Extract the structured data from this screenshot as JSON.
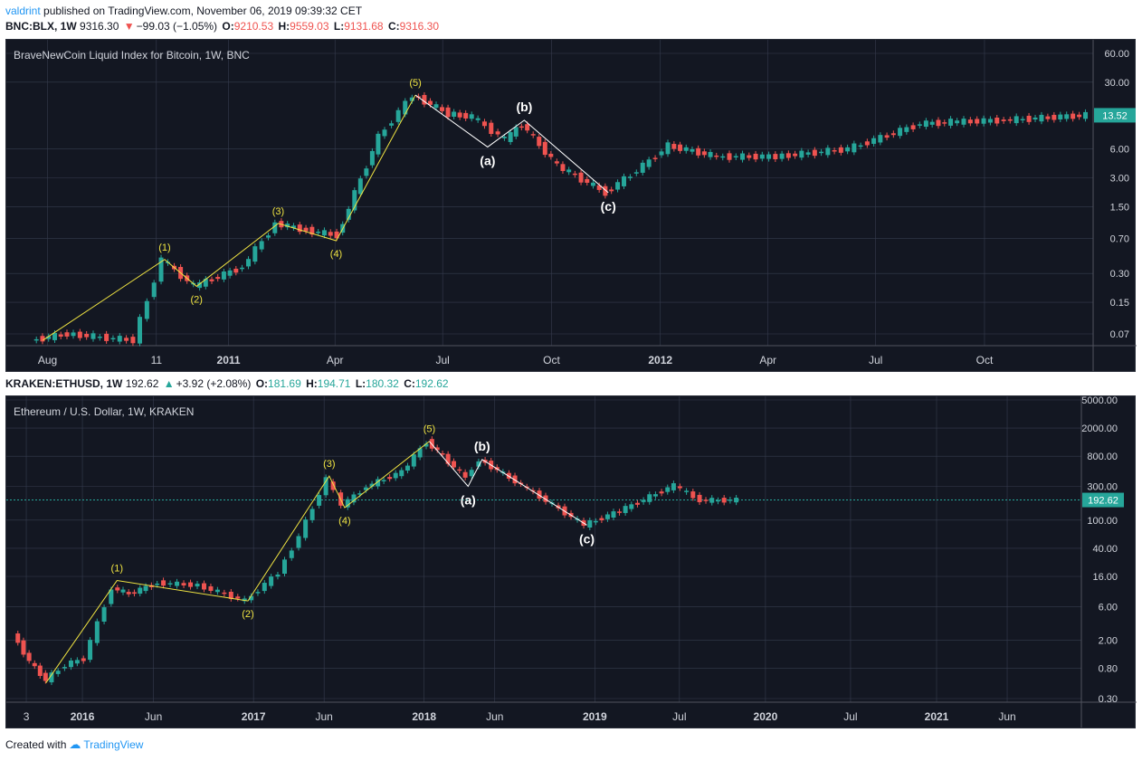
{
  "header": {
    "author": "valdrint",
    "published_text": "published on TradingView.com, November 06, 2019 09:39:32 CET"
  },
  "chart1_header": {
    "symbol": "BNC:BLX, 1W",
    "price": "9316.30",
    "change": "−99.03 (−1.05%)",
    "o_label": "O:",
    "o": "9210.53",
    "h_label": "H:",
    "h": "9559.03",
    "l_label": "L:",
    "l": "9131.68",
    "c_label": "C:",
    "c": "9316.30",
    "change_color": "#ef5350"
  },
  "chart2_header": {
    "symbol": "KRAKEN:ETHUSD, 1W",
    "price": "192.62",
    "change": "+3.92 (+2.08%)",
    "o_label": "O:",
    "o": "181.69",
    "h_label": "H:",
    "h": "194.71",
    "l_label": "L:",
    "l": "180.32",
    "c_label": "C:",
    "c": "192.62",
    "change_color": "#26a69a"
  },
  "footer": {
    "created_with": "Created with",
    "brand": "TradingView"
  },
  "chart_data": [
    {
      "type": "line",
      "title": "BraveNewCoin Liquid Index for Bitcoin, 1W, BNC",
      "y_scale": "log",
      "y_ticks": [
        "60.00",
        "30.00",
        "13.52",
        "6.00",
        "3.00",
        "1.50",
        "0.70",
        "0.30",
        "0.15",
        "0.07"
      ],
      "y_tick_values": [
        60,
        30,
        13.52,
        6,
        3,
        1.5,
        0.7,
        0.3,
        0.15,
        0.07
      ],
      "last_price_label": "13.52",
      "x_ticks": [
        "Aug",
        "11",
        "2011",
        "Apr",
        "Jul",
        "Oct",
        "2012",
        "Apr",
        "Jul",
        "Oct"
      ],
      "bold_x_ticks": [
        "2011",
        "2012"
      ],
      "x_range": [
        "2010-07",
        "2012-12"
      ],
      "price_path": [
        {
          "x": "2010-07-20",
          "y": 0.06
        },
        {
          "x": "2010-08-20",
          "y": 0.07
        },
        {
          "x": "2010-10-15",
          "y": 0.06
        },
        {
          "x": "2010-11-08",
          "y": 0.42
        },
        {
          "x": "2010-12-05",
          "y": 0.22
        },
        {
          "x": "2011-01-15",
          "y": 0.35
        },
        {
          "x": "2011-02-12",
          "y": 1.0
        },
        {
          "x": "2011-03-10",
          "y": 0.85
        },
        {
          "x": "2011-04-05",
          "y": 0.75
        },
        {
          "x": "2011-05-10",
          "y": 8
        },
        {
          "x": "2011-06-08",
          "y": 22
        },
        {
          "x": "2011-07-08",
          "y": 14
        },
        {
          "x": "2011-07-28",
          "y": 13
        },
        {
          "x": "2011-08-25",
          "y": 7.5
        },
        {
          "x": "2011-09-08",
          "y": 11
        },
        {
          "x": "2011-10-08",
          "y": 4
        },
        {
          "x": "2011-11-18",
          "y": 2.1
        },
        {
          "x": "2011-12-25",
          "y": 4.5
        },
        {
          "x": "2012-01-10",
          "y": 6.5
        },
        {
          "x": "2012-02-20",
          "y": 5
        },
        {
          "x": "2012-04-10",
          "y": 5
        },
        {
          "x": "2012-06-10",
          "y": 6
        },
        {
          "x": "2012-08-10",
          "y": 11
        },
        {
          "x": "2012-09-05",
          "y": 11.5
        },
        {
          "x": "2012-10-20",
          "y": 12
        },
        {
          "x": "2012-12-28",
          "y": 13.52
        }
      ],
      "wave_lines": [
        {
          "color": "#f0e442",
          "points": [
            {
              "x": "2010-07-28",
              "y": 0.06
            },
            {
              "x": "2010-11-08",
              "y": 0.42
            },
            {
              "x": "2010-12-05",
              "y": 0.22
            },
            {
              "x": "2011-02-12",
              "y": 1.0
            },
            {
              "x": "2011-04-02",
              "y": 0.66
            },
            {
              "x": "2011-06-08",
              "y": 22
            }
          ]
        },
        {
          "color": "#ffffff",
          "points": [
            {
              "x": "2011-06-08",
              "y": 22
            },
            {
              "x": "2011-08-08",
              "y": 6.3
            },
            {
              "x": "2011-09-08",
              "y": 12
            },
            {
              "x": "2011-11-18",
              "y": 2.1
            }
          ]
        }
      ],
      "annotations": [
        {
          "text": "(1)",
          "x": "2010-11-08",
          "y": 0.42,
          "color": "#f0e442",
          "pos": "above"
        },
        {
          "text": "(2)",
          "x": "2010-12-05",
          "y": 0.22,
          "color": "#f0e442",
          "pos": "below"
        },
        {
          "text": "(3)",
          "x": "2011-02-12",
          "y": 1.0,
          "color": "#f0e442",
          "pos": "above"
        },
        {
          "text": "(4)",
          "x": "2011-04-02",
          "y": 0.66,
          "color": "#f0e442",
          "pos": "below"
        },
        {
          "text": "(5)",
          "x": "2011-06-08",
          "y": 22,
          "color": "#f0e442",
          "pos": "above"
        },
        {
          "text": "(a)",
          "x": "2011-08-08",
          "y": 6.3,
          "color": "#ffffff",
          "pos": "below"
        },
        {
          "text": "(b)",
          "x": "2011-09-08",
          "y": 12,
          "color": "#ffffff",
          "pos": "above"
        },
        {
          "text": "(c)",
          "x": "2011-11-18",
          "y": 2.1,
          "color": "#ffffff",
          "pos": "below"
        }
      ]
    },
    {
      "type": "line",
      "title": "Ethereum / U.S. Dollar, 1W, KRAKEN",
      "y_scale": "log",
      "y_ticks": [
        "5000.00",
        "2000.00",
        "800.00",
        "300.00",
        "192.62",
        "100.00",
        "40.00",
        "16.00",
        "6.00",
        "2.00",
        "0.80",
        "0.30"
      ],
      "y_tick_values": [
        5000,
        2000,
        800,
        300,
        192.62,
        100,
        40,
        16,
        6,
        2,
        0.8,
        0.3
      ],
      "last_price_label": "192.62",
      "x_ticks": [
        "3",
        "2016",
        "Jun",
        "2017",
        "Jun",
        "2018",
        "Jun",
        "2019",
        "Jul",
        "2020",
        "Jul",
        "2021",
        "Jun"
      ],
      "bold_x_ticks": [
        "2016",
        "2017",
        "2018",
        "2019",
        "2020",
        "2021"
      ],
      "x_range": [
        "2015-08",
        "2021-10"
      ],
      "price_path": [
        {
          "x": "2015-08-10",
          "y": 2.5
        },
        {
          "x": "2015-09-15",
          "y": 1.0
        },
        {
          "x": "2015-10-20",
          "y": 0.55
        },
        {
          "x": "2015-12-01",
          "y": 0.9
        },
        {
          "x": "2016-01-10",
          "y": 1.1
        },
        {
          "x": "2016-03-10",
          "y": 11
        },
        {
          "x": "2016-04-15",
          "y": 9
        },
        {
          "x": "2016-06-15",
          "y": 13
        },
        {
          "x": "2016-09-10",
          "y": 12
        },
        {
          "x": "2016-12-20",
          "y": 7.2
        },
        {
          "x": "2017-03-01",
          "y": 18
        },
        {
          "x": "2017-04-15",
          "y": 60
        },
        {
          "x": "2017-06-12",
          "y": 380
        },
        {
          "x": "2017-07-15",
          "y": 160
        },
        {
          "x": "2017-09-05",
          "y": 300
        },
        {
          "x": "2017-11-20",
          "y": 480
        },
        {
          "x": "2018-01-12",
          "y": 1300
        },
        {
          "x": "2018-02-15",
          "y": 800
        },
        {
          "x": "2018-04-05",
          "y": 400
        },
        {
          "x": "2018-05-05",
          "y": 720
        },
        {
          "x": "2018-08-15",
          "y": 280
        },
        {
          "x": "2018-12-15",
          "y": 85
        },
        {
          "x": "2019-03-01",
          "y": 135
        },
        {
          "x": "2019-06-25",
          "y": 310
        },
        {
          "x": "2019-08-20",
          "y": 190
        },
        {
          "x": "2019-11-06",
          "y": 192.62
        }
      ],
      "wave_lines": [
        {
          "color": "#f0e442",
          "points": [
            {
              "x": "2015-10-15",
              "y": 0.5
            },
            {
              "x": "2016-03-15",
              "y": 14
            },
            {
              "x": "2016-12-20",
              "y": 7.2
            },
            {
              "x": "2017-06-12",
              "y": 420
            },
            {
              "x": "2017-07-15",
              "y": 150
            },
            {
              "x": "2018-01-12",
              "y": 1300
            }
          ]
        },
        {
          "color": "#ffffff",
          "points": [
            {
              "x": "2018-01-12",
              "y": 1300
            },
            {
              "x": "2018-04-05",
              "y": 300
            },
            {
              "x": "2018-05-05",
              "y": 720
            },
            {
              "x": "2018-12-15",
              "y": 85
            }
          ]
        }
      ],
      "annotations": [
        {
          "text": "(1)",
          "x": "2016-03-15",
          "y": 14,
          "color": "#f0e442",
          "pos": "above"
        },
        {
          "text": "(2)",
          "x": "2016-12-20",
          "y": 7.2,
          "color": "#f0e442",
          "pos": "below"
        },
        {
          "text": "(3)",
          "x": "2017-06-12",
          "y": 420,
          "color": "#f0e442",
          "pos": "above"
        },
        {
          "text": "(4)",
          "x": "2017-07-15",
          "y": 150,
          "color": "#f0e442",
          "pos": "below"
        },
        {
          "text": "(5)",
          "x": "2018-01-12",
          "y": 1300,
          "color": "#f0e442",
          "pos": "above"
        },
        {
          "text": "(a)",
          "x": "2018-04-05",
          "y": 300,
          "color": "#ffffff",
          "pos": "below"
        },
        {
          "text": "(b)",
          "x": "2018-05-05",
          "y": 720,
          "color": "#ffffff",
          "pos": "above"
        },
        {
          "text": "(c)",
          "x": "2018-12-15",
          "y": 85,
          "color": "#ffffff",
          "pos": "below"
        }
      ]
    }
  ],
  "colors": {
    "background": "#131722",
    "grid": "#363c4e",
    "text": "#d1d4dc",
    "up": "#26a69a",
    "down": "#ef5350",
    "wave_impulse": "#f0e442",
    "wave_correction": "#ffffff"
  }
}
